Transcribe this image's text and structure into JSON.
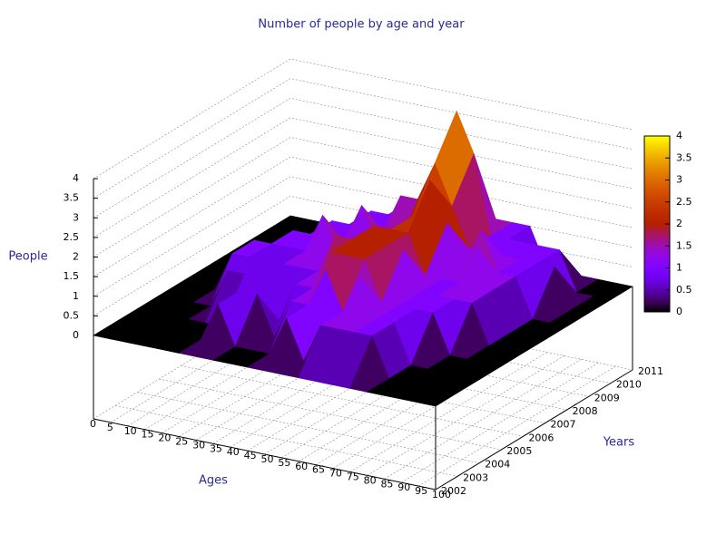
{
  "chart_data": {
    "type": "surface",
    "title": "Number of people by age and year",
    "xlabel": "Ages",
    "ylabel": "Years",
    "zlabel": "People",
    "x": [
      0,
      5,
      10,
      15,
      20,
      25,
      30,
      35,
      40,
      45,
      50,
      55,
      60,
      65,
      70,
      75,
      80,
      85,
      90,
      95,
      100
    ],
    "y": [
      2002,
      2003,
      2004,
      2005,
      2006,
      2007,
      2008,
      2009,
      2010,
      2011
    ],
    "values": [
      [
        0,
        0,
        0,
        0,
        0,
        0,
        0,
        0,
        0,
        0,
        0,
        0,
        0,
        0,
        0,
        0,
        0,
        0,
        0,
        0,
        0
      ],
      [
        0,
        0,
        0,
        0,
        0,
        0,
        1,
        0,
        0,
        0,
        1,
        0,
        1,
        1,
        1,
        1,
        0,
        0,
        0,
        0,
        0
      ],
      [
        0,
        0,
        0,
        0,
        0,
        0,
        1,
        1,
        0,
        1,
        1,
        2,
        1,
        2,
        1,
        1,
        0,
        0,
        0,
        0,
        0
      ],
      [
        0,
        0,
        0,
        0,
        1,
        1,
        1,
        0,
        1,
        1,
        2,
        2,
        2,
        1,
        1,
        1,
        1,
        0,
        0,
        0,
        0
      ],
      [
        0,
        0,
        0,
        1,
        1,
        0,
        1,
        1,
        1,
        2,
        2,
        2,
        2,
        2,
        1,
        1,
        1,
        1,
        0,
        0,
        0
      ],
      [
        0,
        0,
        0,
        1,
        1,
        1,
        1,
        2,
        1,
        1,
        2,
        2,
        2,
        1,
        1,
        1,
        2,
        1,
        0,
        0,
        0
      ],
      [
        0,
        0,
        0,
        0,
        1,
        1,
        1,
        1,
        2,
        1,
        1,
        2,
        3,
        2,
        1,
        2,
        1,
        1,
        0,
        0,
        0
      ],
      [
        0,
        0,
        0,
        0,
        0,
        1,
        1,
        1,
        1,
        2,
        2,
        3,
        2,
        1,
        1,
        1,
        1,
        1,
        1,
        0,
        0
      ],
      [
        0,
        0,
        0,
        0,
        0,
        0,
        1,
        1,
        1,
        1,
        2,
        4,
        3,
        1,
        1,
        1,
        1,
        1,
        0,
        0,
        0
      ],
      [
        0,
        0,
        0,
        0,
        0,
        0,
        0,
        1,
        1,
        1,
        1,
        2,
        1,
        1,
        1,
        0,
        0,
        0,
        0,
        0,
        0
      ]
    ],
    "xlim": [
      0,
      100
    ],
    "ylim": [
      2002,
      2011
    ],
    "zlim": [
      0,
      4
    ],
    "xticks": [
      0,
      5,
      10,
      15,
      20,
      25,
      30,
      35,
      40,
      45,
      50,
      55,
      60,
      65,
      70,
      75,
      80,
      85,
      90,
      95,
      100
    ],
    "yticks": [
      2002,
      2003,
      2004,
      2005,
      2006,
      2007,
      2008,
      2009,
      2010,
      2011
    ],
    "zticks": [
      0,
      0.5,
      1,
      1.5,
      2,
      2.5,
      3,
      3.5,
      4
    ],
    "cblim": [
      0,
      4
    ],
    "cbticks": [
      0,
      0.5,
      1,
      1.5,
      2,
      2.5,
      3,
      3.5,
      4
    ],
    "grid": true
  }
}
